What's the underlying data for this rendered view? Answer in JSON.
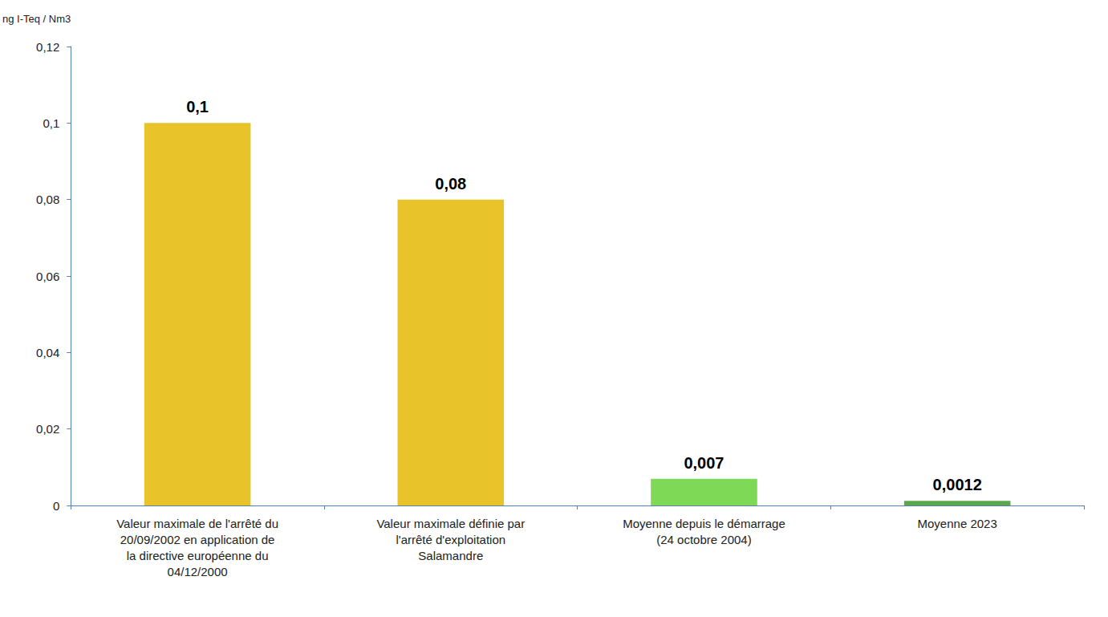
{
  "chart_data": {
    "type": "bar",
    "y_label": "ng I-Teq / Nm3",
    "categories": [
      "Valeur maximale de l'arrêté du 20/09/2002 en application de la directive européenne du 04/12/2000",
      "Valeur maximale définie par l'arrêté d'exploitation Salamandre",
      "Moyenne depuis le démarrage (24 octobre 2004)",
      "Moyenne 2023"
    ],
    "values": [
      0.1,
      0.08,
      0.007,
      0.0012
    ],
    "value_labels": [
      "0,1",
      "0,08",
      "0,007",
      "0,0012"
    ],
    "colors": [
      "#e8c32a",
      "#e8c32a",
      "#7ed957",
      "#5aa84b"
    ],
    "ylim": [
      0,
      0.12
    ],
    "yticks": [
      0,
      {
        "value": 0.02,
        "label": "0,02"
      },
      {
        "value": 0.04,
        "label": "0,04"
      },
      {
        "value": 0.06,
        "label": "0,06"
      },
      {
        "value": 0.08,
        "label": "0,08"
      },
      {
        "value": 0.1,
        "label": "0,1"
      },
      {
        "value": 0.12,
        "label": "0,12"
      }
    ],
    "grid": false,
    "data_labels": true
  }
}
